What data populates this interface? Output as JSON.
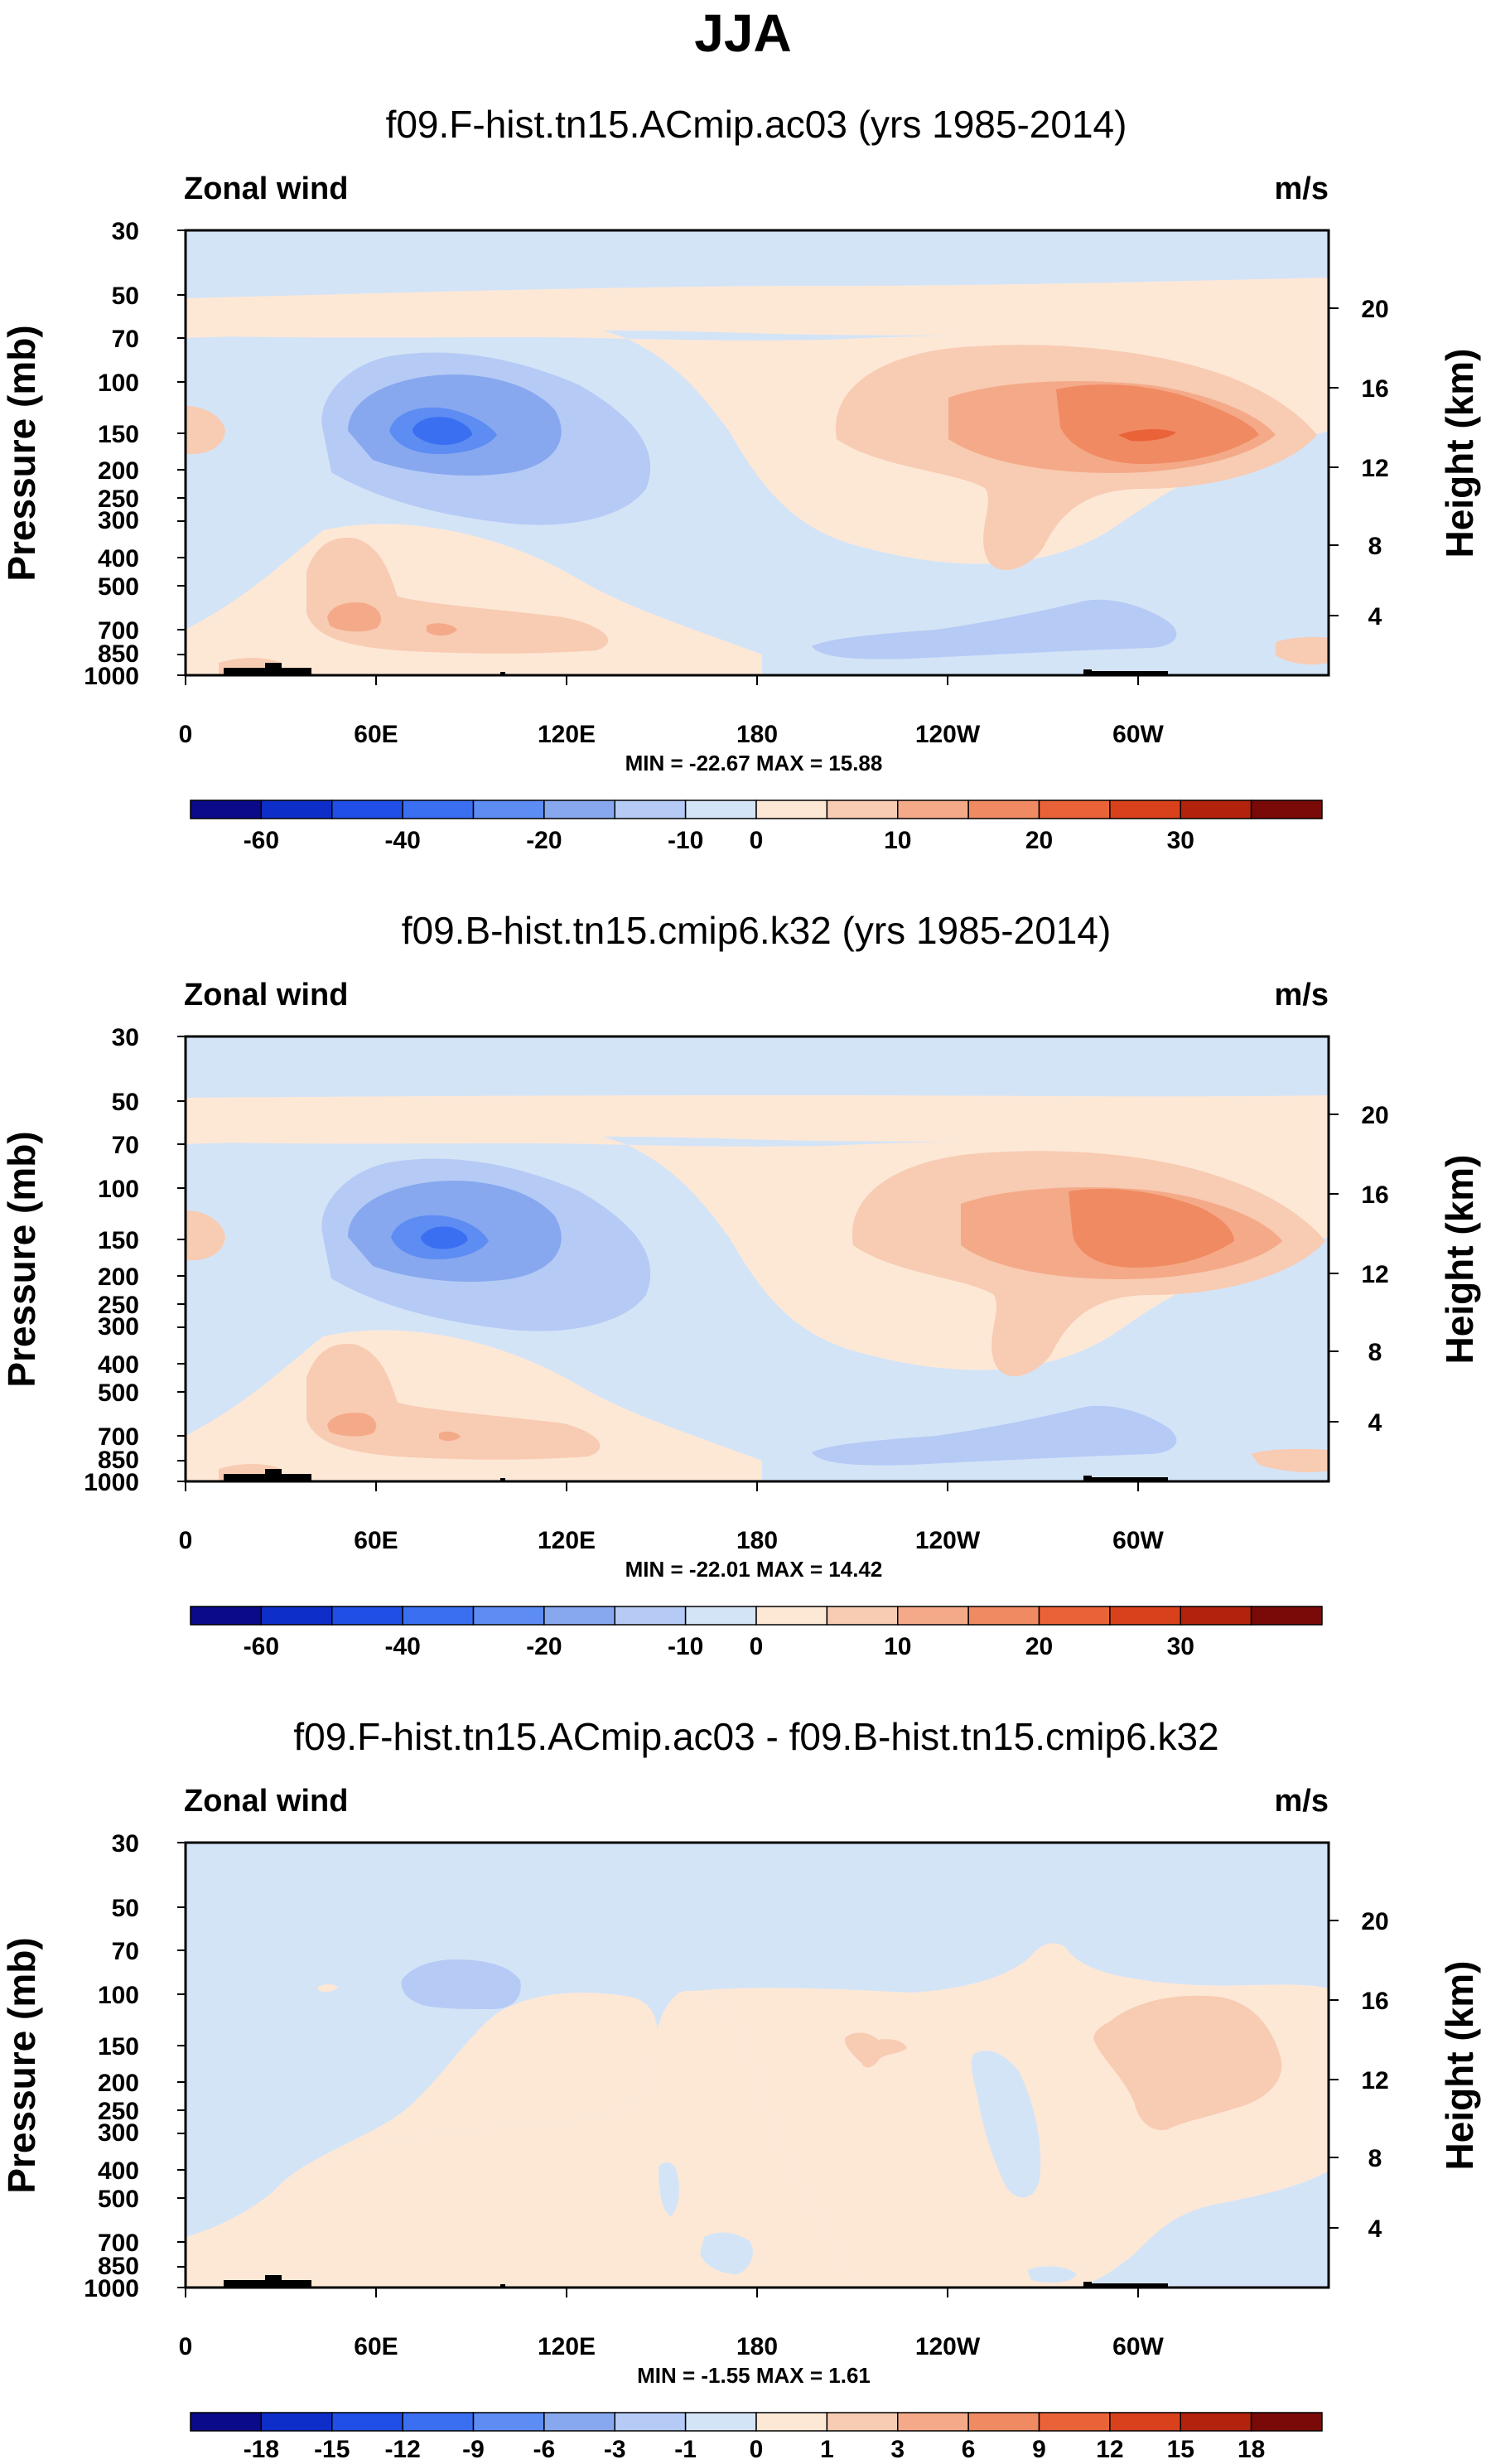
{
  "page": {
    "title": "JJA"
  },
  "chart_data": [
    {
      "type": "heatmap",
      "title": "f09.F-hist.tn15.ACmip.ac03 (yrs 1985-2014)",
      "left_label": "Zonal wind",
      "right_label": "m/s",
      "ylabel": "Pressure (mb)",
      "ylabel_right": "Height (km)",
      "x_ticks": [
        "0",
        "60E",
        "120E",
        "180",
        "120W",
        "60W"
      ],
      "y_ticks": [
        "30",
        "50",
        "70",
        "100",
        "150",
        "200",
        "250",
        "300",
        "400",
        "500",
        "700",
        "850",
        "1000"
      ],
      "height_ticks": [
        "20",
        "16",
        "12",
        "8",
        "4"
      ],
      "min_max": "MIN = -22.67  MAX = 15.88",
      "min": -22.67,
      "max": 15.88,
      "colorbar_labels": [
        "-60",
        "-40",
        "-20",
        "-10",
        "0",
        "10",
        "20",
        "30"
      ],
      "colorbar_levels": [
        -60,
        -50,
        -40,
        -30,
        -20,
        -15,
        -10,
        -5,
        0,
        5,
        10,
        15,
        20,
        25,
        30
      ],
      "features": [
        {
          "name": "easterly-core",
          "lon": 80,
          "p": 150,
          "value": -22.67
        },
        {
          "name": "westerly-core",
          "lon": 300,
          "p": 150,
          "value": 15.88
        },
        {
          "name": "lower-westerly",
          "lon": 75,
          "p": 700,
          "value": 6
        }
      ]
    },
    {
      "type": "heatmap",
      "title": "f09.B-hist.tn15.cmip6.k32 (yrs 1985-2014)",
      "left_label": "Zonal wind",
      "right_label": "m/s",
      "ylabel": "Pressure (mb)",
      "ylabel_right": "Height (km)",
      "x_ticks": [
        "0",
        "60E",
        "120E",
        "180",
        "120W",
        "60W"
      ],
      "y_ticks": [
        "30",
        "50",
        "70",
        "100",
        "150",
        "200",
        "250",
        "300",
        "400",
        "500",
        "700",
        "850",
        "1000"
      ],
      "height_ticks": [
        "20",
        "16",
        "12",
        "8",
        "4"
      ],
      "min_max": "MIN = -22.01  MAX = 14.42",
      "min": -22.01,
      "max": 14.42,
      "colorbar_labels": [
        "-60",
        "-40",
        "-20",
        "-10",
        "0",
        "10",
        "20",
        "30"
      ],
      "colorbar_levels": [
        -60,
        -50,
        -40,
        -30,
        -20,
        -15,
        -10,
        -5,
        0,
        5,
        10,
        15,
        20,
        25,
        30
      ],
      "features": [
        {
          "name": "easterly-core",
          "lon": 80,
          "p": 150,
          "value": -22.01
        },
        {
          "name": "westerly-core",
          "lon": 300,
          "p": 150,
          "value": 14.42
        },
        {
          "name": "lower-westerly",
          "lon": 75,
          "p": 700,
          "value": 6
        }
      ]
    },
    {
      "type": "heatmap",
      "title": "f09.F-hist.tn15.ACmip.ac03 - f09.B-hist.tn15.cmip6.k32",
      "left_label": "Zonal wind",
      "right_label": "m/s",
      "ylabel": "Pressure (mb)",
      "ylabel_right": "Height (km)",
      "x_ticks": [
        "0",
        "60E",
        "120E",
        "180",
        "120W",
        "60W"
      ],
      "y_ticks": [
        "30",
        "50",
        "70",
        "100",
        "150",
        "200",
        "250",
        "300",
        "400",
        "500",
        "700",
        "850",
        "1000"
      ],
      "height_ticks": [
        "20",
        "16",
        "12",
        "8",
        "4"
      ],
      "min_max": "MIN = -1.55  MAX =  1.61",
      "min": -1.55,
      "max": 1.61,
      "colorbar_labels": [
        "-18",
        "-15",
        "-12",
        "-9",
        "-6",
        "-3",
        "-1",
        "0",
        "1",
        "3",
        "6",
        "9",
        "12",
        "15",
        "18"
      ],
      "colorbar_levels": [
        -18,
        -15,
        -12,
        -9,
        -6,
        -3,
        -1,
        0,
        1,
        3,
        6,
        9,
        12,
        15,
        18
      ],
      "features": [
        {
          "name": "negative-patch",
          "lon": 85,
          "p": 100,
          "value": -1.55
        },
        {
          "name": "positive-patch",
          "lon": 300,
          "p": 150,
          "value": 1.61
        }
      ]
    }
  ],
  "colors": {
    "palette": [
      "#0a0a8a",
      "#0d2ec8",
      "#1f4fe6",
      "#3a6ff2",
      "#5d8cf2",
      "#87a8ef",
      "#b5cbf5",
      "#d4e4f7",
      "#fde8d6",
      "#f8cbb3",
      "#f4aa88",
      "#f08a62",
      "#ea6338",
      "#d9401c",
      "#b3220d",
      "#7a0a08"
    ]
  }
}
